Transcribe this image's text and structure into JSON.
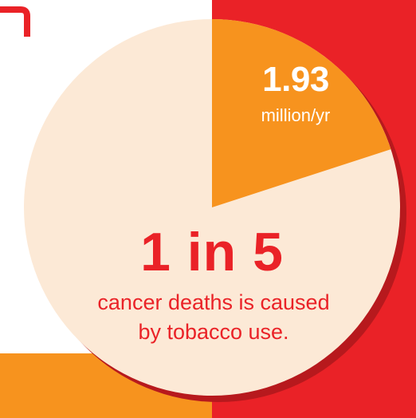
{
  "colors": {
    "pie_main": "#fce9d6",
    "pie_slice": "#f7931e",
    "accent_red": "#ea2227",
    "shadow": "#b7191d",
    "background_orange": "#f7931e",
    "slice_text": "#ffffff",
    "main_text": "#ea2227"
  },
  "chart_data": {
    "type": "pie",
    "slices": [
      {
        "label": "1.93 million/yr",
        "fraction": 0.2
      },
      {
        "label": "",
        "fraction": 0.8
      }
    ]
  },
  "slice_value": "1.93",
  "slice_unit": "million/yr",
  "headline": "1 in 5",
  "caption_line1": "cancer deaths is caused",
  "caption_line2": "by tobacco use."
}
